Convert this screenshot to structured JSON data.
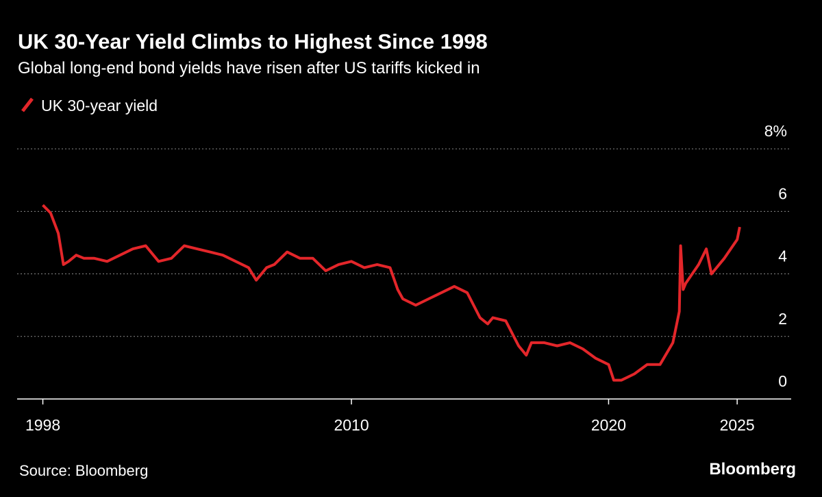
{
  "chart_data": {
    "type": "line",
    "title": "UK 30-Year Yield Climbs to Highest Since 1998",
    "subtitle": "Global long-end bond yields have risen after US tariffs kicked in",
    "source": "Source: Bloomberg",
    "brand": "Bloomberg",
    "x": [
      1998.0,
      1998.3,
      1998.6,
      1998.8,
      1999.0,
      1999.3,
      1999.6,
      2000.0,
      2000.5,
      2001.0,
      2001.5,
      2002.0,
      2002.5,
      2003.0,
      2003.5,
      2004.0,
      2004.5,
      2005.0,
      2005.5,
      2006.0,
      2006.3,
      2006.7,
      2007.0,
      2007.5,
      2008.0,
      2008.5,
      2009.0,
      2009.5,
      2010.0,
      2010.5,
      2011.0,
      2011.5,
      2011.8,
      2012.0,
      2012.5,
      2013.0,
      2013.5,
      2014.0,
      2014.5,
      2015.0,
      2015.3,
      2015.5,
      2016.0,
      2016.5,
      2016.8,
      2017.0,
      2017.5,
      2018.0,
      2018.5,
      2019.0,
      2019.5,
      2020.0,
      2020.2,
      2020.5,
      2021.0,
      2021.5,
      2022.0,
      2022.5,
      2022.75,
      2022.8,
      2022.9,
      2023.0,
      2023.5,
      2023.8,
      2024.0,
      2024.5,
      2025.0,
      2025.1
    ],
    "series": [
      {
        "name": "UK 30-year yield",
        "color": "#e3262a",
        "values": [
          6.2,
          5.95,
          5.3,
          4.3,
          4.4,
          4.6,
          4.5,
          4.5,
          4.4,
          4.6,
          4.8,
          4.9,
          4.4,
          4.5,
          4.9,
          4.8,
          4.7,
          4.6,
          4.4,
          4.2,
          3.8,
          4.2,
          4.3,
          4.7,
          4.5,
          4.5,
          4.1,
          4.3,
          4.4,
          4.2,
          4.3,
          4.2,
          3.5,
          3.2,
          3.0,
          3.2,
          3.4,
          3.6,
          3.4,
          2.6,
          2.4,
          2.6,
          2.5,
          1.7,
          1.4,
          1.8,
          1.8,
          1.7,
          1.8,
          1.6,
          1.3,
          1.1,
          0.6,
          0.6,
          0.8,
          1.1,
          1.1,
          1.8,
          2.8,
          4.9,
          3.5,
          3.7,
          4.3,
          4.8,
          4.0,
          4.5,
          5.1,
          5.5
        ]
      }
    ],
    "xlim": [
      1997.0,
      2027.1
    ],
    "xticks": [
      1998,
      2010,
      2020,
      2025
    ],
    "ylim": [
      0,
      8.2
    ],
    "yticks": [
      0,
      2,
      4,
      6,
      {
        "value": 8,
        "label": "8%"
      }
    ],
    "grid": true
  }
}
